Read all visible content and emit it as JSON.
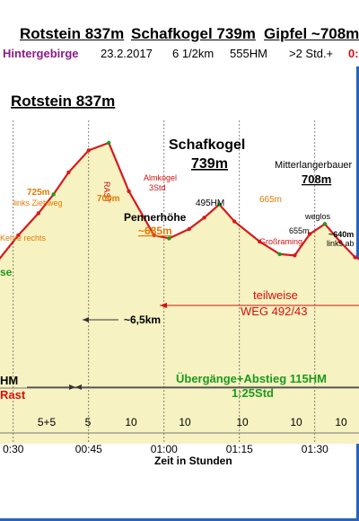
{
  "header": {
    "peaks": [
      "Rotstein 837m",
      "Schafkogel 739m",
      "Gipfel ~708m"
    ],
    "region": "Hintergebirge",
    "date": "23.2.2017",
    "distance": "6 1/2km",
    "ascent": "555HM",
    "duration": ">2 Std.+",
    "extra": "0:"
  },
  "colors": {
    "area_fill": "#f6f2c2",
    "profile_line": "#d61a1a",
    "frame": "#2a63b8",
    "green_text": "#1b9a1b",
    "orange_text": "#e07a00",
    "red_text": "#d41010"
  },
  "chart_data": {
    "type": "area",
    "title": "",
    "xlabel": "Zeit in Stunden",
    "ylabel": "",
    "x_ticks": [
      "0:30",
      "00:45",
      "01:00",
      "01:15",
      "01:30"
    ],
    "profile": {
      "x": [
        "0:27",
        "0:31",
        "0:35",
        "0:38",
        "0:41",
        "0:45",
        "0:49",
        "0:53",
        "0:58",
        "1:01",
        "1:05",
        "1:08",
        "1:11",
        "1:14",
        "1:19",
        "1:23",
        "1:26",
        "1:29",
        "1:32",
        "1:35",
        "1:38",
        "1:42"
      ],
      "y": [
        650,
        690,
        725,
        755,
        790,
        825,
        837,
        760,
        690,
        685,
        700,
        718,
        739,
        712,
        680,
        660,
        658,
        692,
        708,
        680,
        655,
        640
      ]
    },
    "segment_times": [
      "5+5",
      "5",
      "10",
      "10",
      "10",
      "10",
      "10"
    ],
    "annotations": {
      "rotstein": "Rotstein 837m",
      "schafkogel_1": "Schafkogel",
      "schafkogel_2": "739m",
      "mitterlangerbauer": "Mitterlangerbauer",
      "mitter_alt": "708m",
      "rast": "RAST",
      "almkogel": "Almkogel",
      "almkogel_time": "3Std",
      "alt_725": "725m",
      "alt_700": "700m",
      "links_ziehweg": "links Ziehweg",
      "kehre_rechts": "Kehre rechts",
      "pennerhoehe": "Pennerhöhe",
      "pennerhoehe_alt": "~685m",
      "hm495": "495HM",
      "alt_665": "665m",
      "alt_655": "655m",
      "grossraming": "Großraming",
      "weglos": "weglos",
      "alt_640": "~640m",
      "links_ab": "links ab",
      "teilweise": "teilweise",
      "weg": "WEG 492/43",
      "distance": "~6,5km",
      "uebergaenge": "Übergänge+Abstieg 115HM",
      "uebergaenge_time": "1:25Std",
      "left_se": "se",
      "left_hm": "HM",
      "left_rast": "Rast"
    }
  }
}
